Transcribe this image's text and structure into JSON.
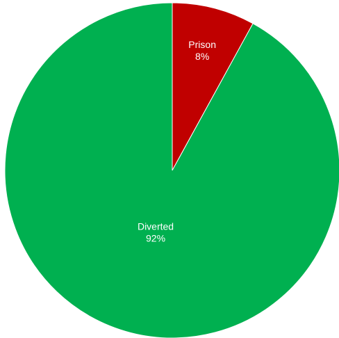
{
  "chart_data": {
    "type": "pie",
    "title": "",
    "start_angle_deg": 0,
    "direction": "clockwise",
    "legend": "none",
    "slices": [
      {
        "name": "Prison",
        "value": 8,
        "label": "8%",
        "color": "#c00000"
      },
      {
        "name": "Diverted",
        "value": 92,
        "label": "92%",
        "color": "#00b050"
      }
    ]
  }
}
